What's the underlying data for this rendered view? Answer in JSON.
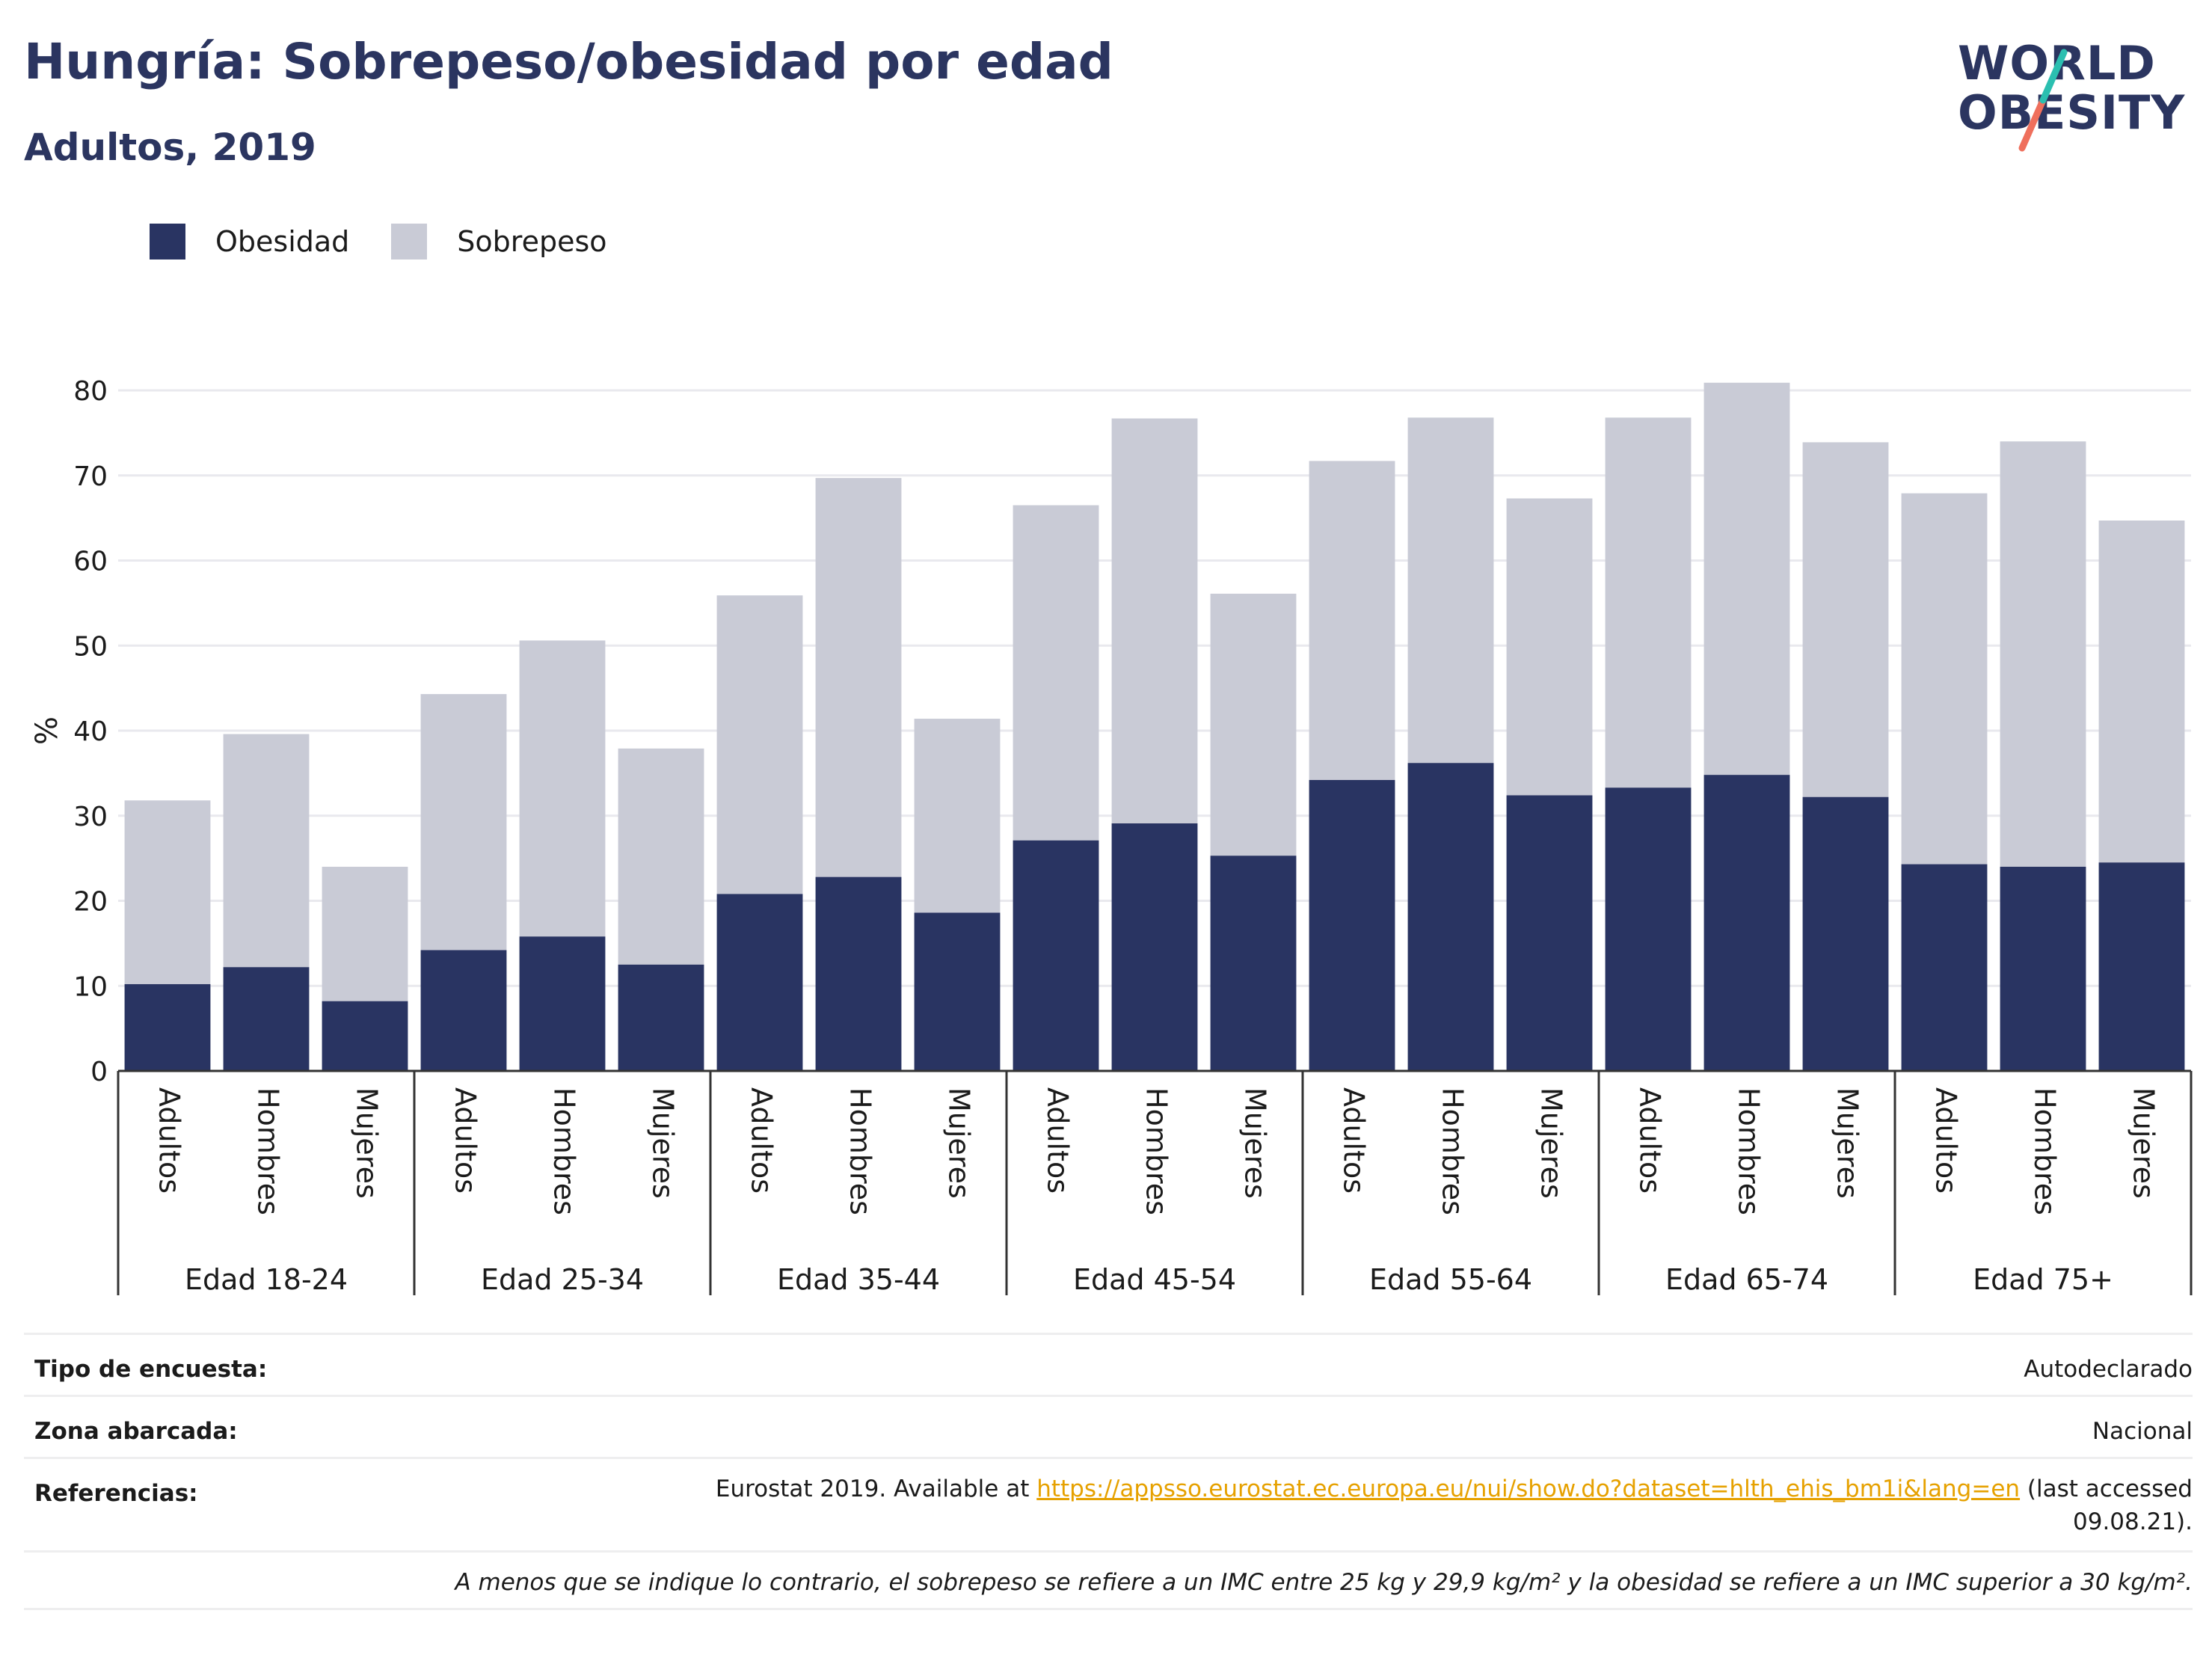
{
  "header": {
    "title": "Hungría: Sobrepeso/obesidad por edad",
    "subtitle": "Adultos, 2019"
  },
  "logo": {
    "line1": "WORLD",
    "line2": "OBESITY"
  },
  "legend": {
    "obesity": "Obesidad",
    "overweight": "Sobrepeso"
  },
  "colors": {
    "obesity": "#293462",
    "overweight": "#c9cbd6",
    "grid": "#e9e9ee",
    "axis": "#333333",
    "logo_teal": "#2bbfb0",
    "logo_coral": "#ef6f5c"
  },
  "chart_data": {
    "type": "bar",
    "stacked": true,
    "ylabel": "%",
    "ylim": [
      0,
      80
    ],
    "yticks": [
      0,
      10,
      20,
      30,
      40,
      50,
      60,
      70,
      80
    ],
    "grid": true,
    "groups": [
      "Edad 18-24",
      "Edad 25-34",
      "Edad 35-44",
      "Edad 45-54",
      "Edad 55-64",
      "Edad 65-74",
      "Edad 75+"
    ],
    "categories": [
      "Adultos",
      "Hombres",
      "Mujeres"
    ],
    "series": [
      {
        "name": "Obesidad",
        "values": [
          [
            10.2,
            12.2,
            8.2
          ],
          [
            14.2,
            15.8,
            12.5
          ],
          [
            20.8,
            22.8,
            18.6
          ],
          [
            27.1,
            29.1,
            25.3
          ],
          [
            34.2,
            36.2,
            32.4
          ],
          [
            33.3,
            34.8,
            32.2
          ],
          [
            24.3,
            24.0,
            24.5
          ]
        ]
      },
      {
        "name": "Sobrepeso",
        "values": [
          [
            21.6,
            27.4,
            15.8
          ],
          [
            30.1,
            34.8,
            25.4
          ],
          [
            35.1,
            46.9,
            22.8
          ],
          [
            39.4,
            47.6,
            30.8
          ],
          [
            37.5,
            40.6,
            34.9
          ],
          [
            43.5,
            46.1,
            41.7
          ],
          [
            43.6,
            50.0,
            40.2
          ]
        ]
      }
    ],
    "totals": [
      [
        31.8,
        39.6,
        24.0
      ],
      [
        44.3,
        50.6,
        37.9
      ],
      [
        55.9,
        69.7,
        41.4
      ],
      [
        66.5,
        76.7,
        56.1
      ],
      [
        71.7,
        76.8,
        67.3
      ],
      [
        76.8,
        80.9,
        73.9
      ],
      [
        67.9,
        74.0,
        64.7
      ]
    ]
  },
  "info": {
    "survey_label": "Tipo de encuesta:",
    "survey_value": "Autodeclarado",
    "area_label": "Zona abarcada:",
    "area_value": "Nacional",
    "refs_label": "Referencias:",
    "refs_prefix": "Eurostat 2019. Available at ",
    "refs_link": "https://appsso.eurostat.ec.europa.eu/nui/show.do?dataset=hlth_ehis_bm1i&lang=en",
    "refs_suffix": " (last accessed",
    "refs_date": "09.08.21).",
    "note": "A menos que se indique lo contrario, el sobrepeso se refiere a un IMC entre 25 kg y 29,9 kg/m² y la obesidad se refiere a un IMC superior a 30 kg/m²."
  }
}
